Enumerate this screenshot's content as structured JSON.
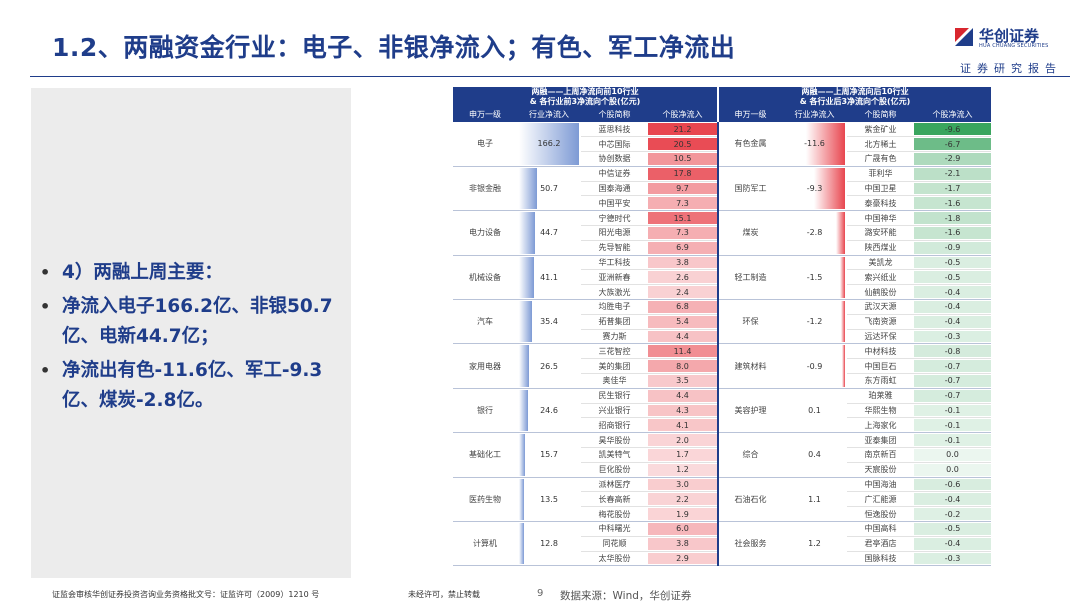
{
  "header": {
    "title": "1.2、两融资金行业：电子、非银净流入；有色、军工净流出",
    "logo_cn": "华创证券",
    "logo_en": "HUA CHUANG SECURITIES",
    "report_tag": "证券研究报告"
  },
  "bullets": [
    "4）两融上周主要：",
    "净流入电子166.2亿、非银50.7亿、电新44.7亿；",
    "净流出有色-11.6亿、军工-9.3亿、煤炭-2.8亿。"
  ],
  "table": {
    "left_title": "两融——上周净流向前10行业\n& 各行业前3净流向个股(亿元)",
    "right_title": "两融——上周净流向后10行业\n& 各行业后3净流向个股(亿元)",
    "columns": [
      "申万一级",
      "行业净流入",
      "个股简称",
      "个股净流入",
      "申万一级",
      "行业净流入",
      "个股简称",
      "个股净流入"
    ],
    "left_groups": [
      {
        "industry": "电子",
        "net": 166.2,
        "stocks": [
          [
            "蓝思科技",
            21.2
          ],
          [
            "中芯国际",
            20.5
          ],
          [
            "协创数据",
            10.5
          ]
        ]
      },
      {
        "industry": "非银金融",
        "net": 50.7,
        "stocks": [
          [
            "中信证券",
            17.8
          ],
          [
            "国泰海通",
            9.7
          ],
          [
            "中国平安",
            7.3
          ]
        ]
      },
      {
        "industry": "电力设备",
        "net": 44.7,
        "stocks": [
          [
            "宁德时代",
            15.1
          ],
          [
            "阳光电源",
            7.3
          ],
          [
            "先导智能",
            6.9
          ]
        ]
      },
      {
        "industry": "机械设备",
        "net": 41.1,
        "stocks": [
          [
            "华工科技",
            3.8
          ],
          [
            "亚洲新春",
            2.6
          ],
          [
            "大族激光",
            2.4
          ]
        ]
      },
      {
        "industry": "汽车",
        "net": 35.4,
        "stocks": [
          [
            "均胜电子",
            6.8
          ],
          [
            "拓普集团",
            5.4
          ],
          [
            "赛力斯",
            4.4
          ]
        ]
      },
      {
        "industry": "家用电器",
        "net": 26.5,
        "stocks": [
          [
            "三花智控",
            11.4
          ],
          [
            "美的集团",
            8.0
          ],
          [
            "奥佳华",
            3.5
          ]
        ]
      },
      {
        "industry": "银行",
        "net": 24.6,
        "stocks": [
          [
            "民生银行",
            4.4
          ],
          [
            "兴业银行",
            4.3
          ],
          [
            "招商银行",
            4.1
          ]
        ]
      },
      {
        "industry": "基础化工",
        "net": 15.7,
        "stocks": [
          [
            "昊华股份",
            2.0
          ],
          [
            "凯美特气",
            1.7
          ],
          [
            "巨化股份",
            1.2
          ]
        ]
      },
      {
        "industry": "医药生物",
        "net": 13.5,
        "stocks": [
          [
            "派林医疗",
            3.0
          ],
          [
            "长春高新",
            2.2
          ],
          [
            "梅花股份",
            1.9
          ]
        ]
      },
      {
        "industry": "计算机",
        "net": 12.8,
        "stocks": [
          [
            "中科曙光",
            6.0
          ],
          [
            "同花顺",
            3.8
          ],
          [
            "太华股份",
            2.9
          ]
        ]
      }
    ],
    "right_groups": [
      {
        "industry": "有色金属",
        "net": -11.6,
        "stocks": [
          [
            "紫金矿业",
            -9.6
          ],
          [
            "北方稀土",
            -6.7
          ],
          [
            "广晟有色",
            -2.9
          ]
        ]
      },
      {
        "industry": "国防军工",
        "net": -9.3,
        "stocks": [
          [
            "菲利华",
            -2.1
          ],
          [
            "中国卫星",
            -1.7
          ],
          [
            "泰豪科技",
            -1.6
          ]
        ]
      },
      {
        "industry": "煤炭",
        "net": -2.8,
        "stocks": [
          [
            "中国神华",
            -1.8
          ],
          [
            "潞安环能",
            -1.6
          ],
          [
            "陕西煤业",
            -0.9
          ]
        ]
      },
      {
        "industry": "轻工制造",
        "net": -1.5,
        "stocks": [
          [
            "美凯龙",
            -0.5
          ],
          [
            "索兴纸业",
            -0.5
          ],
          [
            "仙鹤股份",
            -0.4
          ]
        ]
      },
      {
        "industry": "环保",
        "net": -1.2,
        "stocks": [
          [
            "武汉天源",
            -0.4
          ],
          [
            "飞南资源",
            -0.4
          ],
          [
            "远达环保",
            -0.3
          ]
        ]
      },
      {
        "industry": "建筑材料",
        "net": -0.9,
        "stocks": [
          [
            "中材科技",
            -0.8
          ],
          [
            "中国巨石",
            -0.7
          ],
          [
            "东方雨虹",
            -0.7
          ]
        ]
      },
      {
        "industry": "美容护理",
        "net": 0.1,
        "stocks": [
          [
            "珀莱雅",
            -0.7
          ],
          [
            "华熙生物",
            -0.1
          ],
          [
            "上海家化",
            -0.1
          ]
        ]
      },
      {
        "industry": "综合",
        "net": 0.4,
        "stocks": [
          [
            "亚泰集团",
            -0.1
          ],
          [
            "南京新百",
            0.0
          ],
          [
            "天宸股份",
            0.0
          ]
        ]
      },
      {
        "industry": "石油石化",
        "net": 1.1,
        "stocks": [
          [
            "中国海油",
            -0.6
          ],
          [
            "广汇能源",
            -0.4
          ],
          [
            "恒逸股份",
            -0.2
          ]
        ]
      },
      {
        "industry": "社会服务",
        "net": 1.2,
        "stocks": [
          [
            "中国高科",
            -0.5
          ],
          [
            "君亭酒店",
            -0.4
          ],
          [
            "国脉科技",
            -0.3
          ]
        ]
      }
    ]
  },
  "footer": {
    "license": "证监会审核华创证券投资咨询业务资格批文号：证监许可（2009）1210 号",
    "notice": "未经许可，禁止转载",
    "page": "9",
    "source": "数据来源：Wind，华创证券"
  },
  "colors": {
    "brand": "#1f3d8a",
    "positive": "#e8464f",
    "negative": "#3aa55e",
    "industry_bar": "#6f8fd0"
  }
}
